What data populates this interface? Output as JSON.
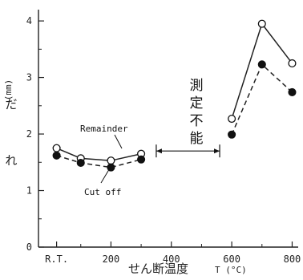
{
  "chart_data": {
    "type": "line",
    "x_tick_labels": [
      "R.T.",
      "200",
      "400",
      "600",
      "800"
    ],
    "y_tick_labels": [
      "0",
      "1",
      "2",
      "3",
      "4"
    ],
    "xlabel": "せん断温度",
    "xlabel_unit": "T (°C)",
    "ylabel": "だれ",
    "ylabel_unit": "(mm)",
    "ylim": [
      0,
      4.2
    ],
    "xlim": [
      -40,
      820
    ],
    "series": [
      {
        "name": "Remainder",
        "marker": "open-circle",
        "line": "solid",
        "points": [
          [
            20,
            1.75
          ],
          [
            100,
            1.57
          ],
          [
            200,
            1.53
          ],
          [
            300,
            1.65
          ]
        ]
      },
      {
        "name": "Remainder",
        "marker": "open-circle",
        "line": "solid",
        "points": [
          [
            600,
            2.27
          ],
          [
            700,
            3.95
          ],
          [
            800,
            3.25
          ]
        ]
      },
      {
        "name": "Cut off",
        "marker": "filled-circle",
        "line": "dashed",
        "points": [
          [
            20,
            1.62
          ],
          [
            100,
            1.49
          ],
          [
            200,
            1.41
          ],
          [
            300,
            1.55
          ]
        ]
      },
      {
        "name": "Cut off",
        "marker": "filled-circle",
        "line": "dashed",
        "points": [
          [
            600,
            1.99
          ],
          [
            700,
            3.23
          ],
          [
            800,
            2.74
          ]
        ]
      }
    ],
    "annotations": {
      "unmeasurable": "測定不能",
      "unmeasurable_range": [
        350,
        560
      ],
      "unmeasurable_y": 1.7
    }
  }
}
